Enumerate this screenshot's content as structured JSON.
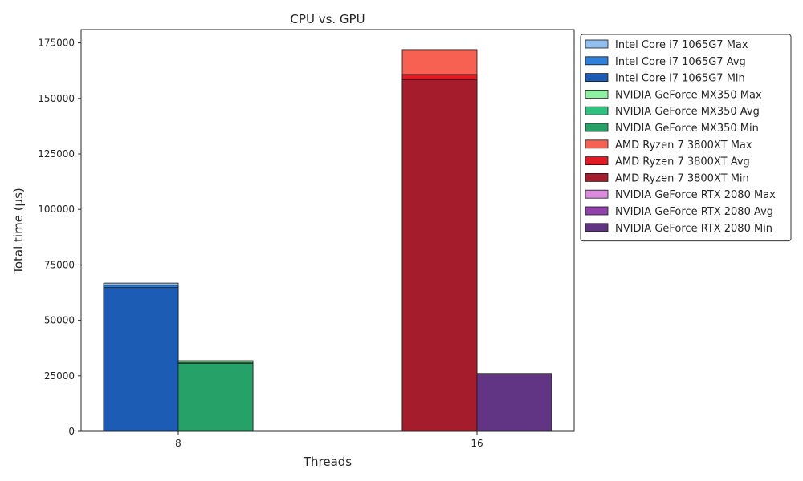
{
  "chart_data": {
    "type": "bar",
    "title": "CPU vs. GPU",
    "xlabel": "Threads",
    "ylabel": "Total time (µs)",
    "ylim": [
      0,
      181000
    ],
    "yticks": [
      0,
      25000,
      50000,
      75000,
      100000,
      125000,
      150000,
      175000
    ],
    "categories": [
      "8",
      "16"
    ],
    "legend": "upper-left outside right",
    "grid": false,
    "devices": [
      {
        "name": "Intel Core i7 1065G7",
        "category": "8",
        "slot": 0,
        "series": [
          {
            "name": "Intel Core i7 1065G7 Max",
            "value": 66800,
            "color": "#90bff0"
          },
          {
            "name": "Intel Core i7 1065G7 Avg",
            "value": 65800,
            "color": "#2f7fdc"
          },
          {
            "name": "Intel Core i7 1065G7 Min",
            "value": 64800,
            "color": "#1c5cb5"
          }
        ]
      },
      {
        "name": "NVIDIA GeForce MX350",
        "category": "8",
        "slot": 1,
        "series": [
          {
            "name": "NVIDIA GeForce MX350 Max",
            "value": 31800,
            "color": "#8ff0a4"
          },
          {
            "name": "NVIDIA GeForce MX350 Avg",
            "value": 31000,
            "color": "#2ec27e"
          },
          {
            "name": "NVIDIA GeForce MX350 Min",
            "value": 30500,
            "color": "#26a269"
          }
        ]
      },
      {
        "name": "AMD Ryzen 7 3800XT",
        "category": "16",
        "slot": 0,
        "series": [
          {
            "name": "AMD Ryzen 7 3800XT Max",
            "value": 172000,
            "color": "#f66151"
          },
          {
            "name": "AMD Ryzen 7 3800XT Avg",
            "value": 160800,
            "color": "#e01b24"
          },
          {
            "name": "AMD Ryzen 7 3800XT Min",
            "value": 158500,
            "color": "#a51d2d"
          }
        ]
      },
      {
        "name": "NVIDIA GeForce RTX 2080",
        "category": "16",
        "slot": 1,
        "series": [
          {
            "name": "NVIDIA GeForce RTX 2080 Max",
            "value": 26100,
            "color": "#dc8add"
          },
          {
            "name": "NVIDIA GeForce RTX 2080 Avg",
            "value": 25900,
            "color": "#9141ac"
          },
          {
            "name": "NVIDIA GeForce RTX 2080 Min",
            "value": 25800,
            "color": "#613583"
          }
        ]
      }
    ]
  }
}
